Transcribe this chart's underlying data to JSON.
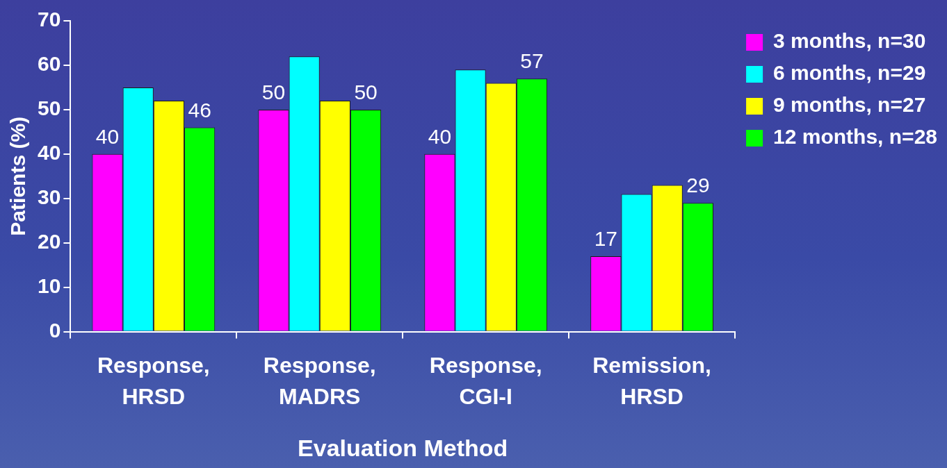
{
  "chart_data": {
    "type": "bar",
    "xlabel": "Evaluation Method",
    "ylabel": "Patients (%)",
    "categories": [
      "Response, HRSD",
      "Response, MADRS",
      "Response, CGI-I",
      "Remission, HRSD"
    ],
    "series": [
      {
        "name": "3 months, n=30",
        "color": "#ff00ff",
        "values": [
          40,
          50,
          40,
          17
        ],
        "value_labels": [
          "40",
          "50",
          "40",
          "17"
        ]
      },
      {
        "name": "6 months, n=29",
        "color": "#00ffff",
        "values": [
          55,
          62,
          59,
          31
        ],
        "value_labels": [
          null,
          null,
          null,
          null
        ]
      },
      {
        "name": "9 months, n=27",
        "color": "#ffff00",
        "values": [
          52,
          52,
          56,
          33
        ],
        "value_labels": [
          null,
          null,
          null,
          null
        ]
      },
      {
        "name": "12 months, n=28",
        "color": "#00ff00",
        "values": [
          46,
          50,
          57,
          29
        ],
        "value_labels": [
          "46",
          "50",
          "57",
          "29"
        ]
      }
    ],
    "ylim": [
      0,
      70
    ],
    "yticks": [
      0,
      10,
      20,
      30,
      40,
      50,
      60,
      70
    ],
    "grid": false,
    "legend": "top right"
  }
}
